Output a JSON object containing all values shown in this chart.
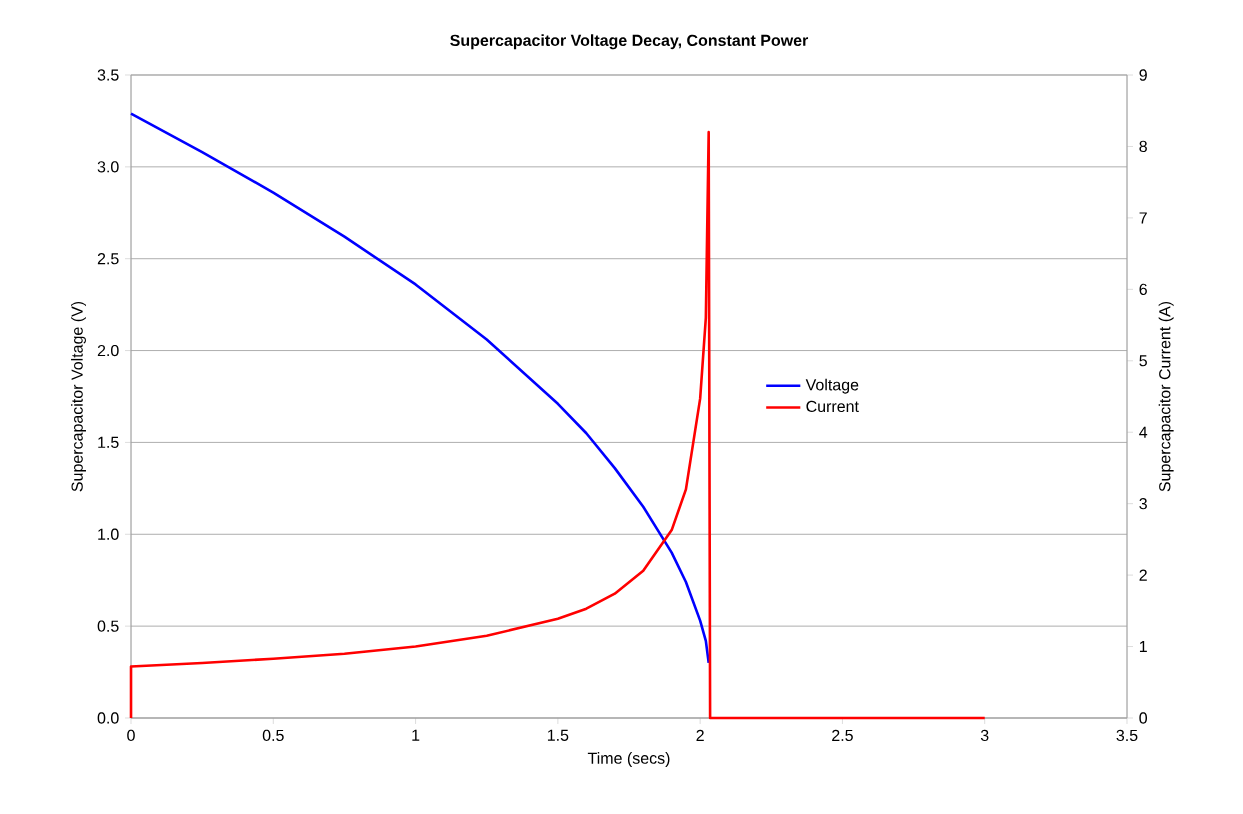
{
  "chart_data": {
    "type": "line",
    "title": "Supercapacitor Voltage Decay, Constant Power",
    "xlabel": "Time (secs)",
    "ylabel": "Supercapacitor Voltage (V)",
    "y2label": "Supercapacitor Current (A)",
    "series": [
      {
        "name": "Voltage",
        "color": "#0000ff",
        "x": [
          0,
          0.25,
          0.5,
          0.75,
          1,
          1.25,
          1.5,
          1.6,
          1.7,
          1.8,
          1.9,
          1.95,
          2.0,
          2.02,
          2.03
        ],
        "values": [
          3.29,
          3.08,
          2.86,
          2.62,
          2.36,
          2.06,
          1.71,
          1.55,
          1.36,
          1.15,
          0.9,
          0.74,
          0.53,
          0.42,
          0.3
        ]
      },
      {
        "name": "Current",
        "color": "#ff0000",
        "axis": "y2",
        "x": [
          0,
          0,
          0.25,
          0.5,
          0.75,
          1,
          1.25,
          1.5,
          1.6,
          1.7,
          1.8,
          1.9,
          1.95,
          2.0,
          2.02,
          2.03,
          2.035,
          3.0
        ],
        "values": [
          0,
          0.72,
          0.77,
          0.83,
          0.9,
          1.0,
          1.15,
          1.39,
          1.53,
          1.74,
          2.06,
          2.63,
          3.2,
          4.47,
          5.6,
          8.2,
          0,
          0
        ]
      }
    ],
    "xlim": [
      0,
      3.5
    ],
    "xticks": [
      0,
      0.5,
      1,
      1.5,
      2,
      2.5,
      3,
      3.5
    ],
    "ylim": [
      0,
      3.5
    ],
    "yticks": [
      {
        "value": 0,
        "label": "0.0"
      },
      {
        "value": 0.5,
        "label": "0.5"
      },
      {
        "value": 1,
        "label": "1.0"
      },
      {
        "value": 1.5,
        "label": "1.5"
      },
      {
        "value": 2,
        "label": "2.0"
      },
      {
        "value": 2.5,
        "label": "2.5"
      },
      {
        "value": 3,
        "label": "3.0"
      },
      {
        "value": 3.5,
        "label": "3.5"
      }
    ],
    "y2lim": [
      0,
      9
    ],
    "y2ticks": [
      0,
      1,
      2,
      3,
      4,
      5,
      6,
      7,
      8,
      9
    ],
    "grid": "y",
    "legend": "right",
    "line_style": "solid"
  }
}
